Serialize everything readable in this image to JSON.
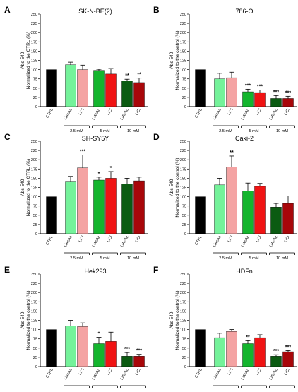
{
  "colors": {
    "CTRL": "#000000",
    "LiAcAc_low": "#74f29a",
    "LiCl_low": "#f4a3a3",
    "LiAcAc_mid": "#14b52e",
    "LiCl_mid": "#f01313",
    "LiAcAc_high": "#0b5b12",
    "LiCl_high": "#a8070a"
  },
  "categories": [
    "CTRL",
    "LiAcAc",
    "LiCl",
    "LiAcAc",
    "LiCl",
    "LiAcAc",
    "LiCl"
  ],
  "groups": [
    "2.5 mM",
    "5 mM",
    "10 mM"
  ],
  "chart_data": [
    {
      "type": "bar",
      "letter": "A",
      "title": "SK-N-BE(2)",
      "ylabel_line1": "Abs 540",
      "ylabel_line2": "Normalized to the CTRL (%)",
      "ylim": [
        0,
        250
      ],
      "yticks": [
        0,
        25,
        50,
        75,
        100,
        125,
        150,
        175,
        200,
        225,
        250
      ],
      "values": [
        100,
        113,
        100,
        98,
        88,
        70,
        65
      ],
      "errors": [
        0,
        7,
        12,
        3,
        15,
        4,
        12
      ],
      "significance": [
        "",
        "",
        "",
        "",
        "",
        "**",
        "**"
      ]
    },
    {
      "type": "bar",
      "letter": "B",
      "title": "786-O",
      "ylabel_line1": "Abs 540",
      "ylabel_line2": "Normalized to the control (%)",
      "ylim": [
        0,
        250
      ],
      "yticks": [
        0,
        25,
        50,
        75,
        100,
        125,
        150,
        175,
        200,
        225,
        250
      ],
      "values": [
        100,
        75,
        78,
        40,
        38,
        22,
        22
      ],
      "errors": [
        0,
        15,
        15,
        7,
        7,
        8,
        6
      ],
      "significance": [
        "",
        "",
        "",
        "***",
        "***",
        "***",
        "***"
      ]
    },
    {
      "type": "bar",
      "letter": "C",
      "title": "SH-SY5Y",
      "ylabel_line1": "Abs 540",
      "ylabel_line2": "Normalized to the CTRL (%)",
      "ylim": [
        0,
        250
      ],
      "yticks": [
        0,
        25,
        50,
        75,
        100,
        125,
        150,
        175,
        200,
        225,
        250
      ],
      "values": [
        100,
        142,
        178,
        145,
        150,
        135,
        143
      ],
      "errors": [
        0,
        13,
        35,
        8,
        18,
        15,
        10
      ],
      "significance": [
        "",
        "",
        "***",
        "*",
        "*",
        "",
        ""
      ]
    },
    {
      "type": "bar",
      "letter": "D",
      "title": "Caki-2",
      "ylabel_line1": "Abs 540",
      "ylabel_line2": "Normalized to the control (%)",
      "ylim": [
        0,
        250
      ],
      "yticks": [
        0,
        25,
        50,
        75,
        100,
        125,
        150,
        175,
        200,
        225,
        250
      ],
      "values": [
        100,
        132,
        180,
        115,
        128,
        72,
        82
      ],
      "errors": [
        0,
        18,
        30,
        22,
        8,
        10,
        20
      ],
      "significance": [
        "",
        "",
        "**",
        "",
        "",
        "",
        ""
      ]
    },
    {
      "type": "bar",
      "letter": "E",
      "title": "Hek293",
      "ylabel_line1": "Abs 540",
      "ylabel_line2": "Normalized to the control (%)",
      "ylim": [
        0,
        250
      ],
      "yticks": [
        0,
        25,
        50,
        75,
        100,
        125,
        150,
        175,
        200,
        225,
        250
      ],
      "values": [
        100,
        110,
        108,
        62,
        68,
        28,
        28
      ],
      "errors": [
        0,
        15,
        10,
        17,
        25,
        10,
        5
      ],
      "significance": [
        "",
        "",
        "",
        "*",
        "",
        "***",
        "***"
      ]
    },
    {
      "type": "bar",
      "letter": "F",
      "title": "HDFn",
      "ylabel_line1": "Abs 540",
      "ylabel_line2": "Normalized to the control (%)",
      "ylim": [
        0,
        250
      ],
      "yticks": [
        0,
        25,
        50,
        75,
        100,
        125,
        150,
        175,
        200,
        225,
        250
      ],
      "values": [
        100,
        78,
        95,
        62,
        78,
        28,
        40
      ],
      "errors": [
        0,
        12,
        5,
        8,
        8,
        4,
        3
      ],
      "significance": [
        "",
        "",
        "",
        "**",
        "",
        "***",
        "***"
      ]
    }
  ]
}
